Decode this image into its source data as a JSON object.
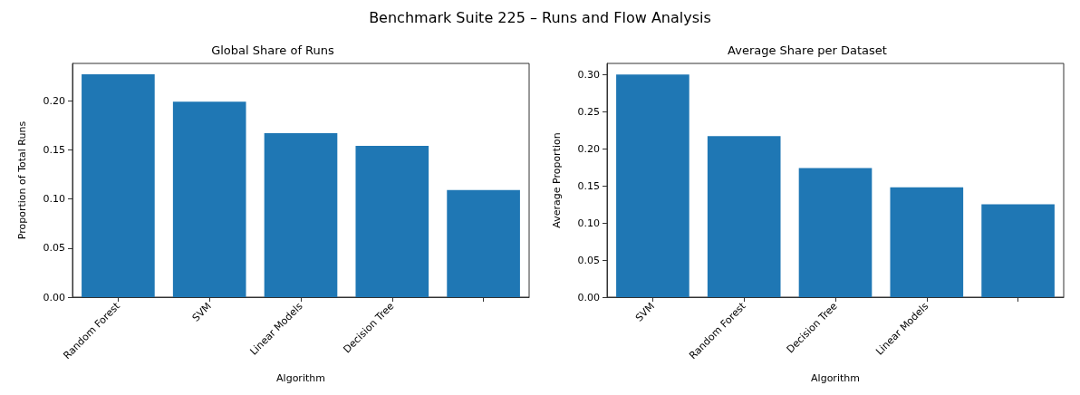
{
  "chart_data": [
    {
      "type": "bar",
      "title": "Global Share of Runs",
      "annotations": [
        "Benchmark Suite 225 – Runs and Flow Analysis"
      ],
      "xlabel": "Algorithm",
      "ylabel": "Proportion of Total Runs",
      "categories": [
        "Random Forest",
        "SVM",
        "Linear Models",
        "Decision Tree",
        null
      ],
      "values": [
        0.227,
        0.199,
        0.167,
        0.154,
        0.109
      ],
      "color": "#1f77b4",
      "ylim": [
        0,
        0.238
      ],
      "yticks": [
        {
          "value": 0,
          "label": "0.00"
        },
        0.05,
        {
          "value": 0.1,
          "label": "0.10"
        },
        0.15,
        {
          "value": 0.2,
          "label": "0.20"
        }
      ],
      "grid": false
    },
    {
      "type": "bar",
      "title": "Average Share per Dataset",
      "xlabel": "Algorithm",
      "ylabel": "Average Proportion",
      "categories": [
        "SVM",
        "Random Forest",
        "Decision Tree",
        "Linear Models",
        null
      ],
      "values": [
        0.3,
        0.217,
        0.174,
        0.148,
        0.125
      ],
      "color": "#1f77b4",
      "ylim": [
        0,
        0.315
      ],
      "yticks": [
        {
          "value": 0,
          "label": "0.00"
        },
        0.05,
        {
          "value": 0.1,
          "label": "0.10"
        },
        0.15,
        {
          "value": 0.2,
          "label": "0.20"
        },
        0.25,
        {
          "value": 0.3,
          "label": "0.30"
        }
      ],
      "grid": false
    }
  ]
}
